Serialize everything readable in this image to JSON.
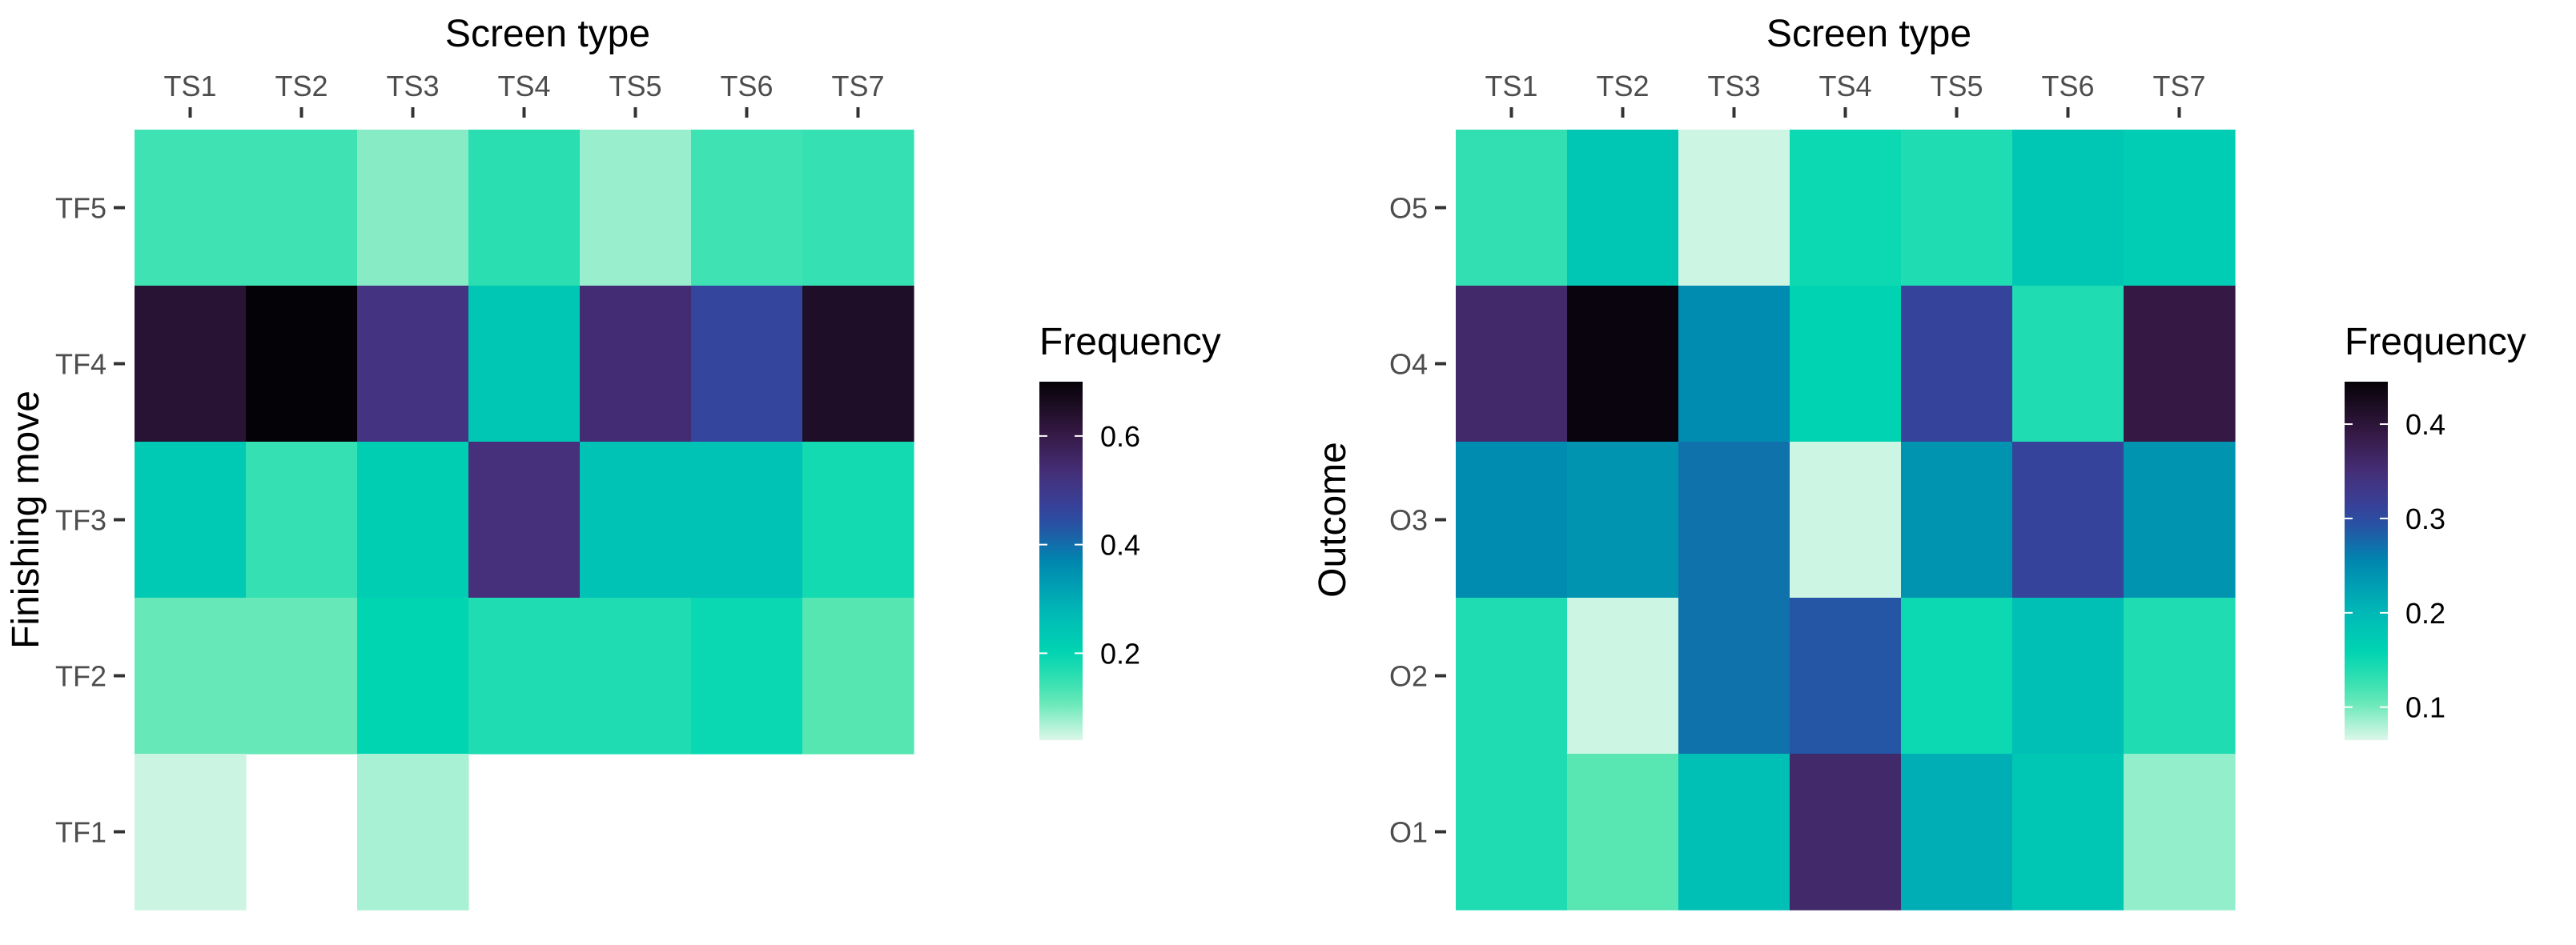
{
  "chart_data": [
    {
      "type": "heatmap",
      "title": "Screen type",
      "xlabel": "Screen type",
      "ylabel": "Finishing move",
      "x_categories": [
        "TS1",
        "TS2",
        "TS3",
        "TS4",
        "TS5",
        "TS6",
        "TS7"
      ],
      "y_categories": [
        "TF5",
        "TF4",
        "TF3",
        "TF2",
        "TF1"
      ],
      "values": [
        [
          0.14,
          0.14,
          0.09,
          0.16,
          0.08,
          0.14,
          0.15
        ],
        [
          0.63,
          0.7,
          0.52,
          0.24,
          0.54,
          0.46,
          0.65
        ],
        [
          0.23,
          0.15,
          0.22,
          0.53,
          0.25,
          0.25,
          0.18
        ],
        [
          0.11,
          0.11,
          0.2,
          0.17,
          0.17,
          0.19,
          0.12
        ],
        [
          0.05,
          null,
          0.07,
          null,
          null,
          null,
          null
        ]
      ],
      "legend": {
        "title": "Frequency",
        "min": 0.04,
        "max": 0.7,
        "ticks": [
          0.2,
          0.4,
          0.6
        ],
        "tick_labels": [
          "0.2",
          "0.4",
          "0.6"
        ]
      }
    },
    {
      "type": "heatmap",
      "title": "Screen type",
      "xlabel": "Screen type",
      "ylabel": "Outcome",
      "x_categories": [
        "TS1",
        "TS2",
        "TS3",
        "TS4",
        "TS5",
        "TS6",
        "TS7"
      ],
      "y_categories": [
        "O5",
        "O4",
        "O3",
        "O2",
        "O1"
      ],
      "values": [
        [
          0.13,
          0.18,
          0.07,
          0.15,
          0.14,
          0.18,
          0.17
        ],
        [
          0.36,
          0.44,
          0.25,
          0.16,
          0.31,
          0.14,
          0.39
        ],
        [
          0.25,
          0.24,
          0.27,
          0.07,
          0.24,
          0.31,
          0.24
        ],
        [
          0.14,
          0.07,
          0.27,
          0.29,
          0.15,
          0.19,
          0.14
        ],
        [
          0.14,
          0.11,
          0.19,
          0.36,
          0.21,
          0.18,
          0.09
        ]
      ],
      "legend": {
        "title": "Frequency",
        "min": 0.065,
        "max": 0.445,
        "ticks": [
          0.1,
          0.2,
          0.3,
          0.4
        ],
        "tick_labels": [
          "0.1",
          "0.2",
          "0.3",
          "0.4"
        ]
      }
    }
  ]
}
